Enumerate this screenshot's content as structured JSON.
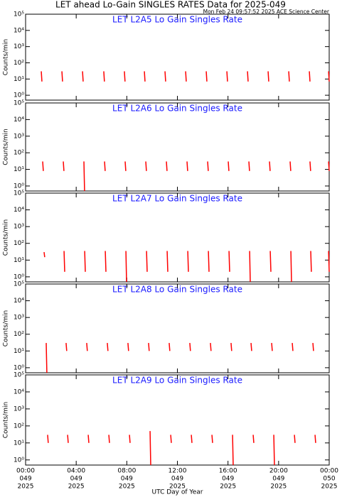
{
  "title": "LET ahead Lo-Gain SINGLES RATES Data for 2025-049",
  "timestamp": "Mon Feb 24 09:57:52 2025 ACE Science Center",
  "chart_data": [
    {
      "type": "line",
      "title": "LET L2A5 Lo Gain Singles Rate",
      "ylabel": "Counts/min",
      "log_y": true,
      "xlim": [
        0,
        24
      ],
      "xticks": [
        0,
        4,
        8,
        12,
        16,
        20,
        24
      ],
      "ylim": [
        0.5,
        100000
      ],
      "yticks": [
        {
          "value": 1,
          "label": "10⁰"
        },
        {
          "value": 10,
          "label": "10¹"
        },
        {
          "value": 100,
          "label": "10²"
        },
        {
          "value": 1000,
          "label": "10³"
        },
        {
          "value": 10000,
          "label": "10⁴"
        },
        {
          "value": 100000,
          "label": "10⁵"
        }
      ],
      "series": [
        {
          "color": "#ff0000",
          "x": [
            1.24,
            1.29,
            null,
            2.87,
            2.92,
            null,
            4.5,
            4.55,
            null,
            6.18,
            6.23,
            null,
            7.81,
            7.86,
            null,
            9.39,
            9.44,
            null,
            11.02,
            11.07,
            null,
            12.65,
            12.7,
            null,
            14.28,
            14.33,
            null,
            15.91,
            15.96,
            null,
            17.54,
            17.59,
            null,
            19.17,
            19.22,
            null,
            20.8,
            20.85,
            null,
            22.43,
            22.48,
            null,
            23.95,
            24
          ],
          "values": [
            30,
            7,
            null,
            30,
            7,
            null,
            30,
            7,
            null,
            30,
            7,
            null,
            30,
            7,
            null,
            30,
            7,
            null,
            30,
            7,
            null,
            30,
            7,
            null,
            30,
            7,
            null,
            30,
            7,
            null,
            30,
            7,
            null,
            30,
            7,
            null,
            30,
            7,
            null,
            30,
            7,
            null,
            30,
            7
          ]
        }
      ]
    },
    {
      "type": "line",
      "title": "LET L2A6 Lo Gain Singles Rate",
      "ylabel": "Counts/min",
      "log_y": true,
      "xlim": [
        0,
        24
      ],
      "xticks": [
        0,
        4,
        8,
        12,
        16,
        20,
        24
      ],
      "ylim": [
        0.5,
        100000
      ],
      "yticks": [
        {
          "value": 1,
          "label": "10⁰"
        },
        {
          "value": 10,
          "label": "10¹"
        },
        {
          "value": 100,
          "label": "10²"
        },
        {
          "value": 1000,
          "label": "10³"
        },
        {
          "value": 10000,
          "label": "10⁴"
        },
        {
          "value": 100000,
          "label": "10⁵"
        }
      ],
      "series": [
        {
          "color": "#ff0000",
          "x": [
            1.35,
            1.4,
            null,
            2.98,
            3.03,
            null,
            4.61,
            4.66,
            null,
            6.24,
            6.29,
            null,
            7.87,
            7.92,
            null,
            9.5,
            9.55,
            null,
            11.13,
            11.18,
            null,
            12.76,
            12.81,
            null,
            14.39,
            14.44,
            null,
            16.02,
            16.07,
            null,
            17.65,
            17.7,
            null,
            19.28,
            19.33,
            null,
            20.91,
            20.96,
            null,
            22.48,
            22.53,
            null,
            23.95,
            24
          ],
          "values": [
            30,
            8,
            null,
            30,
            8,
            null,
            30,
            0.5,
            null,
            30,
            8,
            null,
            30,
            8,
            null,
            30,
            8,
            null,
            30,
            8,
            null,
            30,
            8,
            null,
            30,
            8,
            null,
            30,
            8,
            null,
            30,
            8,
            null,
            30,
            8,
            null,
            30,
            8,
            null,
            30,
            8,
            null,
            30,
            8
          ]
        }
      ]
    },
    {
      "type": "line",
      "title": "LET L2A7 Lo Gain Singles Rate",
      "ylabel": "Counts/min",
      "log_y": true,
      "xlim": [
        0,
        24
      ],
      "xticks": [
        0,
        4,
        8,
        12,
        16,
        20,
        24
      ],
      "ylim": [
        0.5,
        100000
      ],
      "yticks": [
        {
          "value": 1,
          "label": "10⁰"
        },
        {
          "value": 10,
          "label": "10¹"
        },
        {
          "value": 100,
          "label": "10²"
        },
        {
          "value": 1000,
          "label": "10³"
        },
        {
          "value": 10000,
          "label": "10⁴"
        },
        {
          "value": 100000,
          "label": "10⁵"
        }
      ],
      "series": [
        {
          "color": "#ff0000",
          "x": [
            1.46,
            1.51,
            null,
            3.04,
            3.09,
            null,
            4.67,
            4.72,
            null,
            6.3,
            6.35,
            null,
            7.93,
            7.98,
            null,
            9.56,
            9.61,
            null,
            11.19,
            11.24,
            null,
            12.82,
            12.87,
            null,
            14.45,
            14.5,
            null,
            16.08,
            16.13,
            null,
            17.71,
            17.76,
            null,
            19.34,
            19.39,
            null,
            20.97,
            21.02,
            null,
            22.54,
            22.59,
            null,
            23.95,
            24
          ],
          "values": [
            30,
            15,
            null,
            35,
            2,
            null,
            35,
            2,
            null,
            35,
            2,
            null,
            35,
            0.5,
            null,
            35,
            2,
            null,
            35,
            2,
            null,
            35,
            2,
            null,
            35,
            2,
            null,
            35,
            2,
            null,
            35,
            0.5,
            null,
            35,
            2,
            null,
            35,
            0.5,
            null,
            35,
            2,
            null,
            35,
            2
          ]
        }
      ]
    },
    {
      "type": "line",
      "title": "LET L2A8 Lo Gain Singles Rate",
      "ylabel": "Counts/min",
      "log_y": true,
      "xlim": [
        0,
        24
      ],
      "xticks": [
        0,
        4,
        8,
        12,
        16,
        20,
        24
      ],
      "ylim": [
        0.5,
        100000
      ],
      "yticks": [
        {
          "value": 1,
          "label": "10⁰"
        },
        {
          "value": 10,
          "label": "10¹"
        },
        {
          "value": 100,
          "label": "10²"
        },
        {
          "value": 1000,
          "label": "10³"
        },
        {
          "value": 10000,
          "label": "10⁴"
        },
        {
          "value": 100000,
          "label": "10⁵"
        }
      ],
      "series": [
        {
          "color": "#ff0000",
          "x": [
            1.63,
            1.68,
            null,
            3.2,
            3.25,
            null,
            4.83,
            4.88,
            null,
            6.46,
            6.51,
            null,
            8.09,
            8.14,
            null,
            9.72,
            9.77,
            null,
            11.35,
            11.4,
            null,
            12.98,
            13.03,
            null,
            14.61,
            14.66,
            null,
            16.24,
            16.29,
            null,
            17.82,
            17.87,
            null,
            19.45,
            19.5,
            null,
            21.08,
            21.13,
            null,
            22.71,
            22.76
          ],
          "values": [
            30,
            0.5,
            null,
            30,
            10,
            null,
            30,
            10,
            null,
            30,
            10,
            null,
            30,
            10,
            null,
            30,
            10,
            null,
            30,
            10,
            null,
            30,
            10,
            null,
            30,
            10,
            null,
            30,
            10,
            null,
            30,
            10,
            null,
            30,
            10,
            null,
            30,
            10,
            null,
            30,
            10
          ]
        }
      ]
    },
    {
      "type": "line",
      "title": "LET L2A9 Lo Gain Singles Rate",
      "ylabel": "Counts/min",
      "xlabel": "UTC Day of Year",
      "log_y": true,
      "xlim": [
        0,
        24
      ],
      "xticks": [
        {
          "value": 0,
          "label": [
            "00:00",
            "049",
            "2025"
          ]
        },
        {
          "value": 4,
          "label": [
            "04:00",
            "049",
            "2025"
          ]
        },
        {
          "value": 8,
          "label": [
            "08:00",
            "049",
            "2025"
          ]
        },
        {
          "value": 12,
          "label": [
            "12:00",
            "049",
            "2025"
          ]
        },
        {
          "value": 16,
          "label": [
            "16:00",
            "049",
            "2025"
          ]
        },
        {
          "value": 20,
          "label": [
            "20:00",
            "049",
            "2025"
          ]
        },
        {
          "value": 24,
          "label": [
            "00:00",
            "050",
            "2025"
          ]
        }
      ],
      "ylim": [
        0.5,
        100000
      ],
      "yticks": [
        {
          "value": 1,
          "label": "10⁰"
        },
        {
          "value": 10,
          "label": "10¹"
        },
        {
          "value": 100,
          "label": "10²"
        },
        {
          "value": 1000,
          "label": "10³"
        },
        {
          "value": 10000,
          "label": "10⁴"
        },
        {
          "value": 100000,
          "label": "10⁵"
        }
      ],
      "series": [
        {
          "color": "#ff0000",
          "x": [
            1.74,
            1.79,
            null,
            3.32,
            3.37,
            null,
            4.95,
            5,
            null,
            6.58,
            6.63,
            null,
            8.21,
            8.26,
            null,
            9.84,
            9.89,
            null,
            11.47,
            11.52,
            null,
            13.1,
            13.15,
            null,
            14.73,
            14.78,
            null,
            16.36,
            16.41,
            null,
            17.99,
            18.04,
            null,
            19.62,
            19.67,
            null,
            21.25,
            21.3,
            null,
            22.88,
            22.93
          ],
          "values": [
            30,
            10,
            null,
            30,
            10,
            null,
            30,
            10,
            null,
            30,
            10,
            null,
            30,
            10,
            null,
            50,
            0.5,
            null,
            30,
            10,
            null,
            30,
            10,
            null,
            30,
            10,
            null,
            30,
            0.5,
            null,
            30,
            10,
            null,
            30,
            0.5,
            null,
            30,
            10,
            null,
            30,
            10
          ]
        }
      ]
    }
  ]
}
